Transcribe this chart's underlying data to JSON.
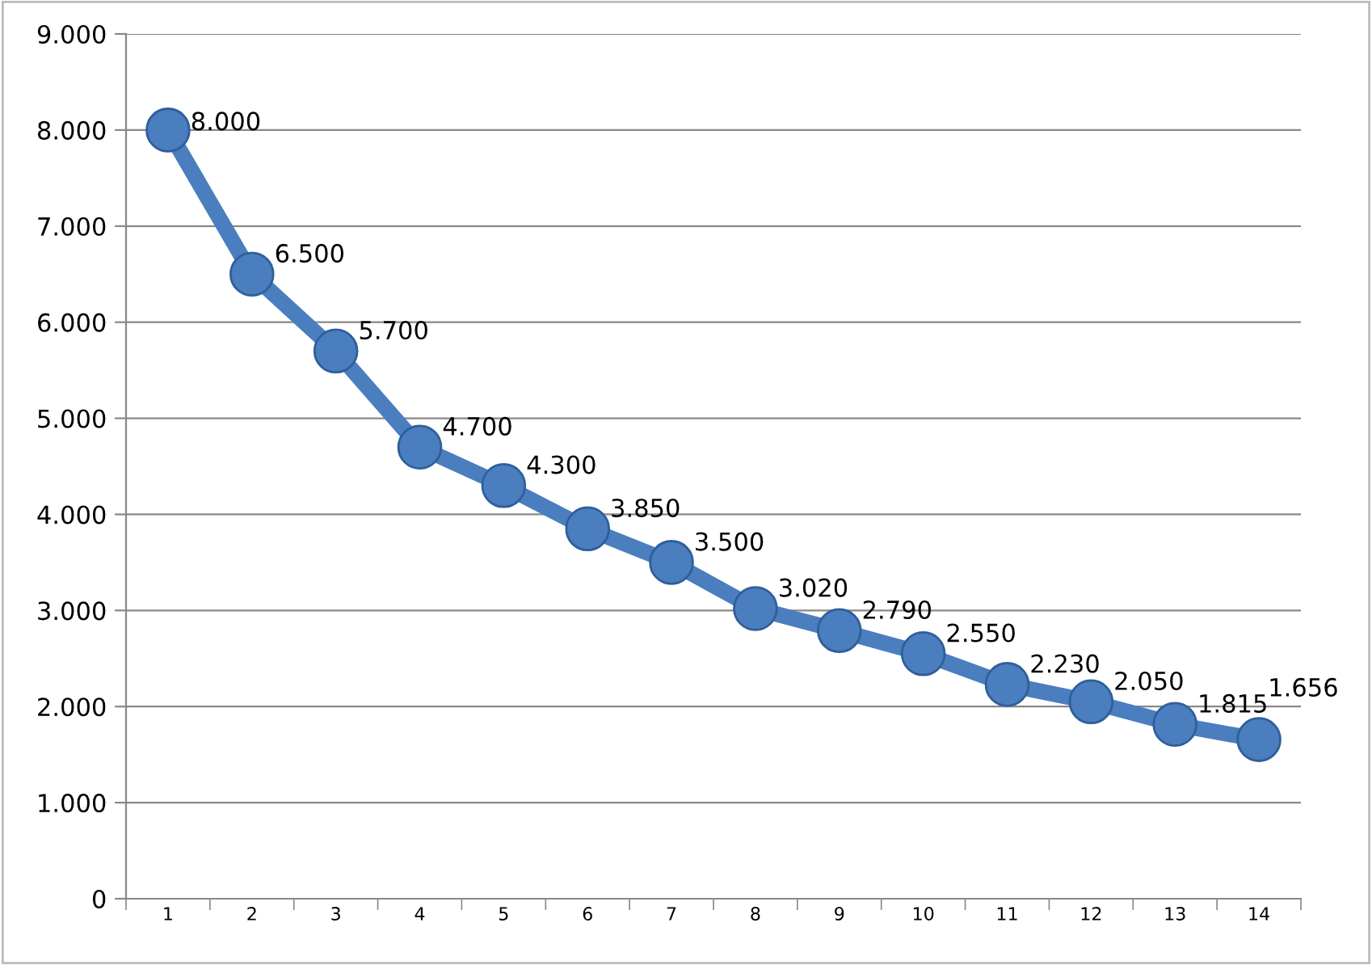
{
  "chart_data": {
    "type": "line",
    "categories": [
      "1",
      "2",
      "3",
      "4",
      "5",
      "6",
      "7",
      "8",
      "9",
      "10",
      "11",
      "12",
      "13",
      "14"
    ],
    "series": [
      {
        "color": "#4a7ebf",
        "values": [
          8000,
          6500,
          5700,
          4700,
          4300,
          3850,
          3500,
          3020,
          2790,
          2550,
          2230,
          2050,
          1815,
          1656
        ],
        "value_labels": [
          "8.000",
          "6.500",
          "5.700",
          "4.700",
          "4.300",
          "3.850",
          "3.500",
          "3.020",
          "2.790",
          "2.550",
          "2.230",
          "2.050",
          "1.815",
          "1.656"
        ]
      }
    ],
    "ylim": [
      0,
      9000
    ],
    "yticks": [
      {
        "value": 0,
        "label": "0"
      },
      {
        "value": 1000,
        "label": "1.000"
      },
      {
        "value": 2000,
        "label": "2.000"
      },
      {
        "value": 3000,
        "label": "3.000"
      },
      {
        "value": 4000,
        "label": "4.000"
      },
      {
        "value": 5000,
        "label": "5.000"
      },
      {
        "value": 6000,
        "label": "6.000"
      },
      {
        "value": 7000,
        "label": "7.000"
      },
      {
        "value": 8000,
        "label": "8.000"
      },
      {
        "value": 9000,
        "label": "9.000"
      }
    ],
    "grid": "y",
    "marker": "circle",
    "line_style": "solid",
    "legend": false
  }
}
